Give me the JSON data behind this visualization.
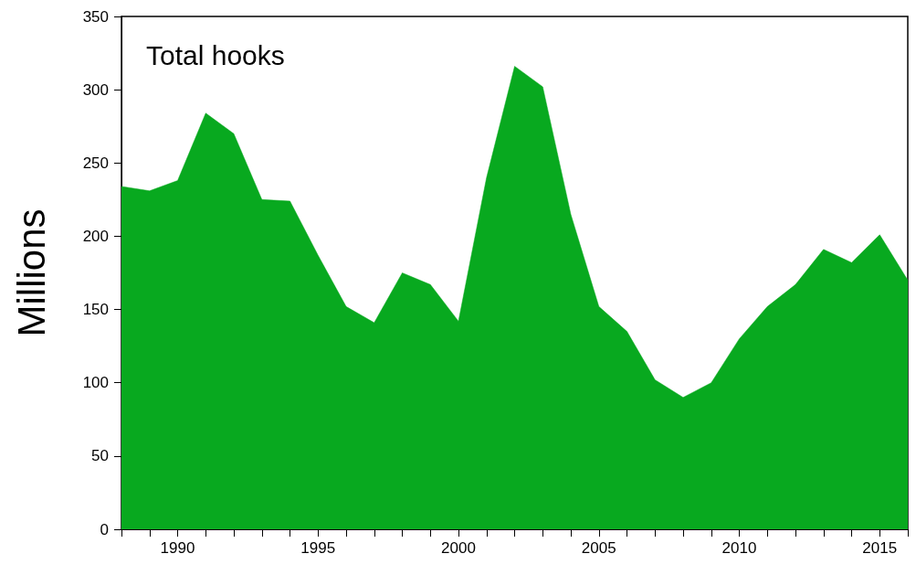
{
  "chart_data": {
    "type": "area",
    "title": "Total hooks",
    "ylabel": "Millions",
    "x": [
      1988,
      1989,
      1990,
      1991,
      1992,
      1993,
      1994,
      1995,
      1996,
      1997,
      1998,
      1999,
      2000,
      2001,
      2002,
      2003,
      2004,
      2005,
      2006,
      2007,
      2008,
      2009,
      2010,
      2011,
      2012,
      2013,
      2014,
      2015,
      2016
    ],
    "series": [
      {
        "color": "#08a91f",
        "values": [
          234,
          231,
          238,
          284,
          270,
          225,
          224,
          187,
          152,
          141,
          175,
          167,
          142,
          240,
          316,
          302,
          215,
          152,
          135,
          102,
          90,
          100,
          130,
          152,
          167,
          191,
          182,
          201,
          170
        ]
      }
    ],
    "xlim": [
      1988,
      2016
    ],
    "xticks": [
      {
        "value": 1988,
        "label": null
      },
      {
        "value": 1989,
        "label": null
      },
      1990,
      {
        "value": 1991,
        "label": null
      },
      {
        "value": 1992,
        "label": null
      },
      {
        "value": 1993,
        "label": null
      },
      {
        "value": 1994,
        "label": null
      },
      1995,
      {
        "value": 1996,
        "label": null
      },
      {
        "value": 1997,
        "label": null
      },
      {
        "value": 1998,
        "label": null
      },
      {
        "value": 1999,
        "label": null
      },
      2000,
      {
        "value": 2001,
        "label": null
      },
      {
        "value": 2002,
        "label": null
      },
      {
        "value": 2003,
        "label": null
      },
      {
        "value": 2004,
        "label": null
      },
      2005,
      {
        "value": 2006,
        "label": null
      },
      {
        "value": 2007,
        "label": null
      },
      {
        "value": 2008,
        "label": null
      },
      {
        "value": 2009,
        "label": null
      },
      2010,
      {
        "value": 2011,
        "label": null
      },
      {
        "value": 2012,
        "label": null
      },
      {
        "value": 2013,
        "label": null
      },
      {
        "value": 2014,
        "label": null
      },
      2015,
      {
        "value": 2016,
        "label": null
      }
    ],
    "ylim": [
      0,
      350
    ],
    "yticks": [
      0,
      50,
      100,
      150,
      200,
      250,
      300,
      350
    ],
    "grid": false
  }
}
